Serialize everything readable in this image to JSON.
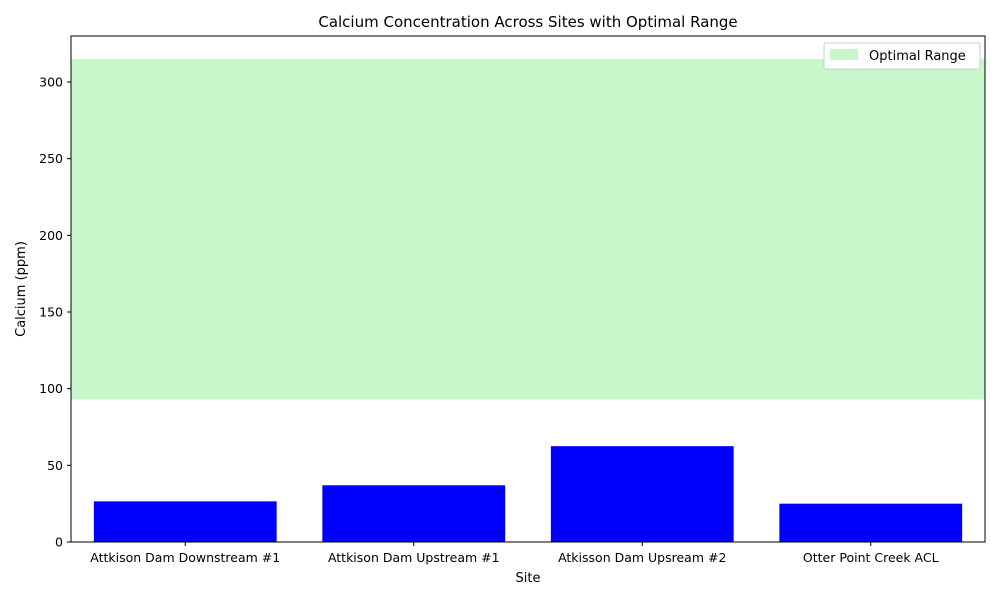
{
  "chart_data": {
    "type": "bar",
    "title": "Calcium Concentration Across Sites with Optimal Range",
    "xlabel": "Site",
    "ylabel": "Calcium (ppm)",
    "categories": [
      "Attkison Dam Downstream #1",
      "Attkison Dam Upstream #1",
      "Atkisson Dam Upsream #2",
      "Otter Point Creek ACL"
    ],
    "values": [
      26.5,
      37,
      62.5,
      25
    ],
    "ylim": [
      0,
      330
    ],
    "yticks": [
      0,
      50,
      100,
      150,
      200,
      250,
      300
    ],
    "bar_color": "#0000ff",
    "optimal_range": {
      "label": "Optimal Range",
      "min": 93,
      "max": 315,
      "color": "#c8f7cb"
    },
    "legend": {
      "position": "top-right",
      "entries": [
        "Optimal Range"
      ]
    },
    "grid": false
  }
}
